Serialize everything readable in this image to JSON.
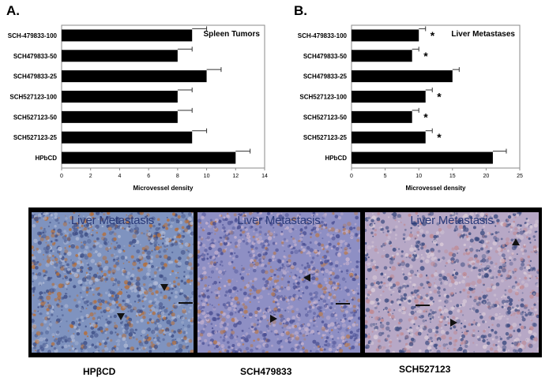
{
  "panels": {
    "a_label": "A.",
    "b_label": "B."
  },
  "chart_data": [
    {
      "type": "bar",
      "orientation": "horizontal",
      "title": "Spleen Tumors",
      "categories": [
        "SCH-479833-100",
        "SCH479833-50",
        "SCH479833-25",
        "SCH527123-100",
        "SCH527123-50",
        "SCH527123-25",
        "HPbCD"
      ],
      "values": [
        9,
        8,
        10,
        8,
        8,
        9,
        12
      ],
      "errors": [
        1,
        1,
        1,
        1,
        1,
        1,
        1
      ],
      "significance": [
        "",
        "",
        "",
        "",
        "",
        "",
        ""
      ],
      "xlabel": "Microvessel density",
      "xlim": [
        0,
        14
      ],
      "xticks": [
        "0",
        "2",
        "4",
        "6",
        "8",
        "10",
        "12",
        "14"
      ],
      "grid": false
    },
    {
      "type": "bar",
      "orientation": "horizontal",
      "title": "Liver Metastases",
      "categories": [
        "SCH-479833-100",
        "SCH479833-50",
        "SCH479833-25",
        "SCH527123-100",
        "SCH527123-50",
        "SCH527123-25",
        "HPbCD"
      ],
      "values": [
        10,
        9,
        15,
        11,
        9,
        11,
        21
      ],
      "errors": [
        1,
        1,
        1,
        1,
        1,
        1,
        2
      ],
      "significance": [
        "*",
        "*",
        "",
        "*",
        "*",
        "*",
        ""
      ],
      "xlabel": "Microvessel density",
      "xlim": [
        0,
        25
      ],
      "xticks": [
        "0",
        "5",
        "10",
        "15",
        "20",
        "25"
      ],
      "grid": false
    }
  ],
  "micrographs": [
    {
      "title": "Liver Metastasis",
      "caption": "HPβCD"
    },
    {
      "title": "Liver Metastasis",
      "caption": "SCH479833"
    },
    {
      "title": "Liver Metastasis",
      "caption": "SCH527123"
    }
  ],
  "colors": {
    "bar": "#000000",
    "stain_blue": "#6f86b8",
    "stain_brown": "#b5703c"
  }
}
